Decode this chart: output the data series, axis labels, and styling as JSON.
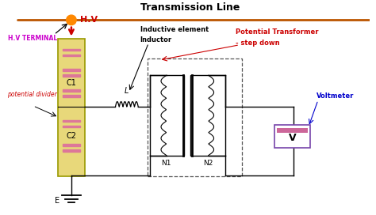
{
  "title": "Transmission Line",
  "bg_color": "#ffffff",
  "title_color": "#000000",
  "hv_color": "#cc0000",
  "label_purple": "#cc00cc",
  "label_blue": "#0000cc",
  "label_red": "#cc0000",
  "capacitor_color": "#dd7799",
  "box_fill": "#e8d87a",
  "box_edge": "#999900",
  "trans_line_color": "#bb5500",
  "ground_color": "#000000",
  "voltmeter_fill": "#cc6699",
  "voltmeter_edge": "#7744aa",
  "dashed_box_color": "#555555",
  "wire_color": "#000000",
  "xlim": [
    0,
    9.5
  ],
  "ylim": [
    0,
    5.5
  ]
}
